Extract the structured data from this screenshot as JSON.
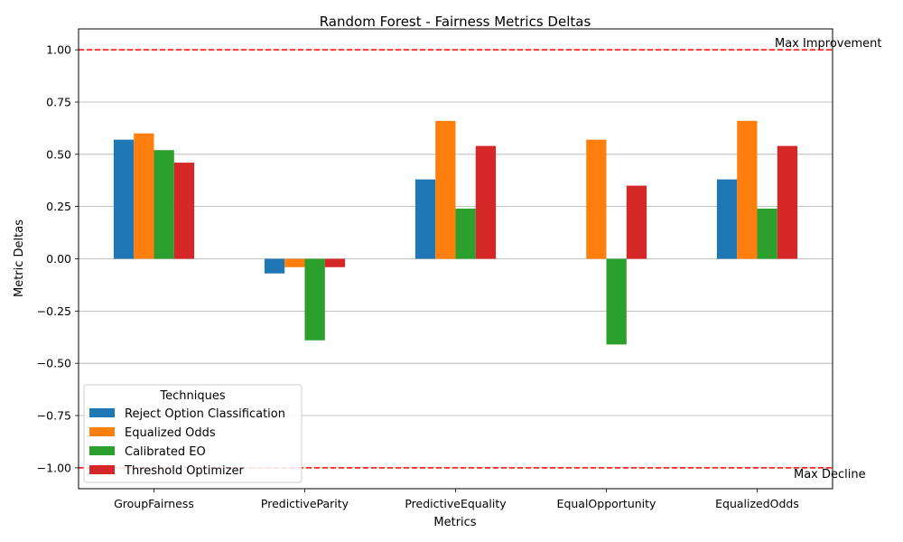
{
  "chart_data": {
    "type": "bar",
    "title": "Random Forest - Fairness Metrics Deltas",
    "xlabel": "Metrics",
    "ylabel": "Metric Deltas",
    "ylim": [
      -1.1,
      1.1
    ],
    "yticks": [
      -1.0,
      -0.75,
      -0.5,
      -0.25,
      0.0,
      0.25,
      0.5,
      0.75,
      1.0
    ],
    "ytick_labels": [
      "−1.00",
      "−0.75",
      "−0.50",
      "−0.25",
      "0.00",
      "0.25",
      "0.50",
      "0.75",
      "1.00"
    ],
    "grid": "y",
    "categories": [
      "GroupFairness",
      "PredictiveParity",
      "PredictiveEquality",
      "EqualOpportunity",
      "EqualizedOdds"
    ],
    "series": [
      {
        "name": "Reject Option Classification",
        "color": "#1f77b4",
        "values": [
          0.57,
          -0.07,
          0.38,
          0.0,
          0.38
        ]
      },
      {
        "name": "Equalized Odds",
        "color": "#ff7f0e",
        "values": [
          0.6,
          -0.04,
          0.66,
          0.57,
          0.66
        ]
      },
      {
        "name": "Calibrated EO",
        "color": "#2ca02c",
        "values": [
          0.52,
          -0.39,
          0.24,
          -0.41,
          0.24
        ]
      },
      {
        "name": "Threshold Optimizer",
        "color": "#d62728",
        "values": [
          0.46,
          -0.04,
          0.54,
          0.35,
          0.54
        ]
      }
    ],
    "legend": {
      "title": "Techniques",
      "placement": "lower-left"
    },
    "reference_lines": [
      {
        "y": 1.0,
        "label": "Max Improvement",
        "color": "#ff0000",
        "style": "dashed"
      },
      {
        "y": -1.0,
        "label": "Max Decline",
        "color": "#ff0000",
        "style": "dashed"
      }
    ]
  }
}
